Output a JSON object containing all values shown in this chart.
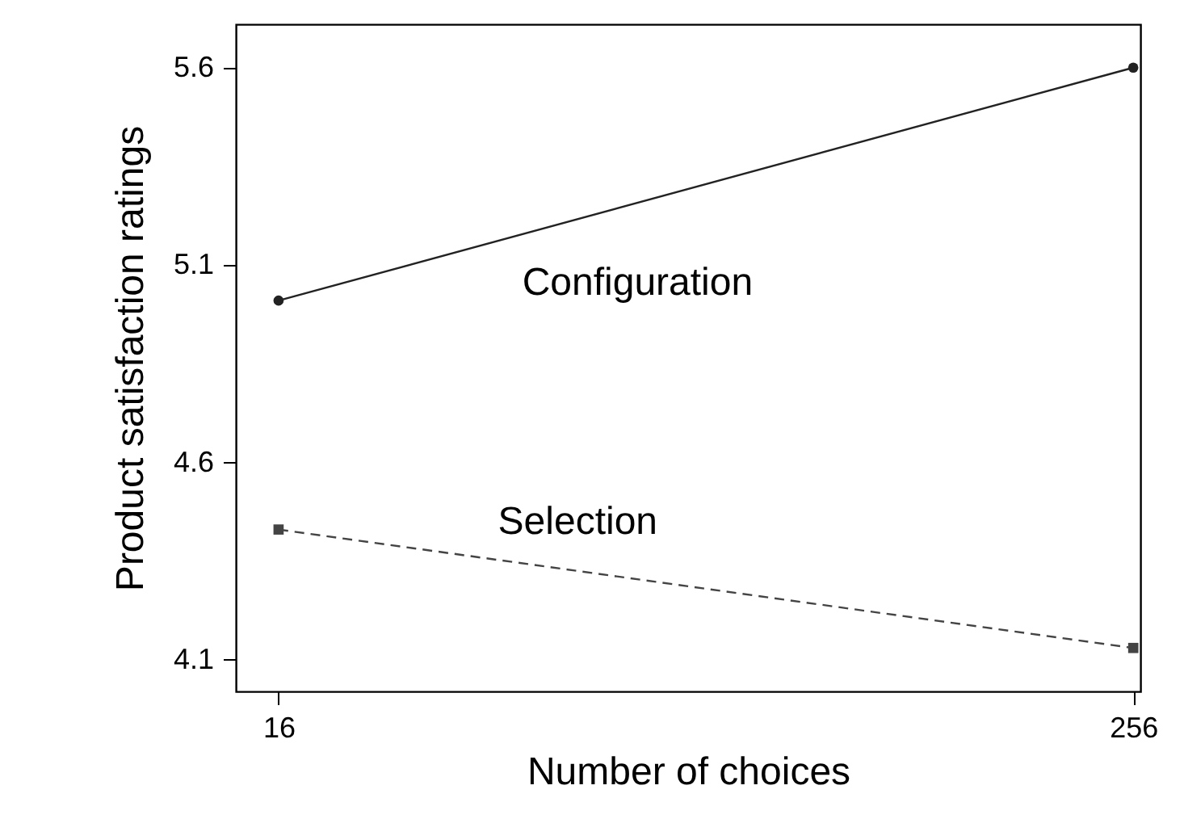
{
  "chart_data": {
    "type": "line",
    "xlabel": "Number of choices",
    "ylabel": "Product satisfaction ratings",
    "x": [
      16,
      256
    ],
    "xlim": [
      4,
      258
    ],
    "xticks": [
      16,
      256
    ],
    "ylim": [
      4.02,
      5.71
    ],
    "yticks": [
      4.1,
      4.6,
      5.1,
      5.6
    ],
    "grid": false,
    "series": [
      {
        "name": "Configuration",
        "color": "#222222",
        "values": [
          5.01,
          5.6
        ],
        "marker": "circle",
        "line_style": "solid"
      },
      {
        "name": "Selection",
        "color": "#444444",
        "values": [
          4.43,
          4.13
        ],
        "marker": "square",
        "line_style": "dashed"
      }
    ]
  }
}
